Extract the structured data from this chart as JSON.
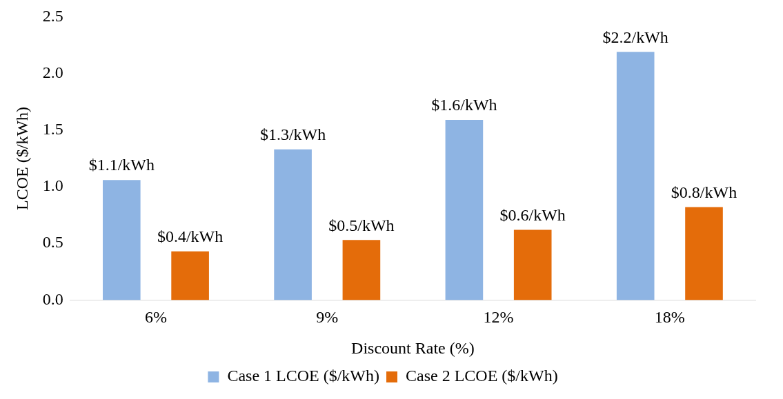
{
  "chart_data": {
    "type": "bar",
    "xlabel": "Discount Rate (%)",
    "ylabel": "LCOE ($/kWh)",
    "categories": [
      "6%",
      "9%",
      "12%",
      "18%"
    ],
    "series": [
      {
        "name": "Case 1 LCOE ($/kWh)",
        "color": "#8eb4e3",
        "values": [
          1.06,
          1.33,
          1.59,
          2.19
        ],
        "value_labels": [
          "$1.1/kWh",
          "$1.3/kWh",
          "$1.6/kWh",
          "$2.2/kWh"
        ]
      },
      {
        "name": "Case 2 LCOE ($/kWh)",
        "color": "#e46c0a",
        "values": [
          0.43,
          0.53,
          0.62,
          0.82
        ],
        "value_labels": [
          "$0.4/kWh",
          "$0.5/kWh",
          "$0.6/kWh",
          "$0.8/kWh"
        ]
      }
    ],
    "ylim": [
      0,
      2.5
    ],
    "yticks": [
      {
        "value": 0,
        "label": "0.0"
      },
      {
        "value": 0.5,
        "label": "0.5"
      },
      {
        "value": 1,
        "label": "1.0"
      },
      {
        "value": 1.5,
        "label": "1.5"
      },
      {
        "value": 2,
        "label": "2.0"
      },
      {
        "value": 2.5,
        "label": "2.5"
      }
    ],
    "grid": false,
    "legend": "bottom"
  }
}
